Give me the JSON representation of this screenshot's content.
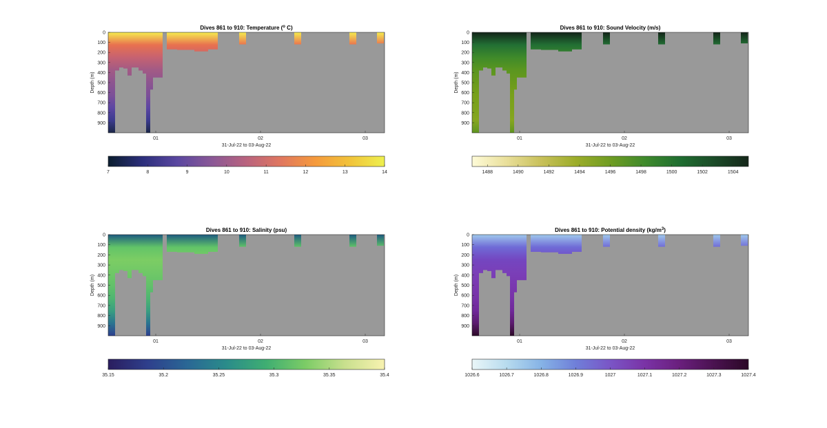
{
  "figure": {
    "background": "#ffffff",
    "no_data_color": "#999999"
  },
  "chart_data": [
    {
      "type": "heatmap",
      "title": "Dives 861 to 910: Temperature (",
      "title_super": "o",
      "title_suffix": " C)",
      "xlabel": "31-Jul-22 to 03-Aug-22",
      "ylabel": "Depth (m)",
      "x_ticks": [
        "01",
        "02",
        "03"
      ],
      "y_ticks": [
        "0",
        "100",
        "200",
        "300",
        "400",
        "500",
        "600",
        "700",
        "800",
        "900"
      ],
      "ylim": [
        0,
        1000
      ],
      "colorbar": {
        "ticks": [
          "7",
          "8",
          "9",
          "10",
          "11",
          "12",
          "13",
          "14"
        ],
        "range": [
          7,
          14
        ],
        "colors": [
          "#0b1d2e",
          "#2c2f7c",
          "#5a47a0",
          "#8a5896",
          "#b9637e",
          "#e0775f",
          "#f59a3c",
          "#f1c33a",
          "#eef04f"
        ]
      },
      "profile_colors": [
        "#f6ec4f",
        "#e8714f",
        "#c66271",
        "#a25a85",
        "#8d5590",
        "#7c4f98",
        "#5d46a3",
        "#3c3b8f",
        "#1b2747"
      ]
    },
    {
      "type": "heatmap",
      "title": "Dives 861 to 910: Sound Velocity (m/s)",
      "title_super": "",
      "title_suffix": "",
      "xlabel": "31-Jul-22 to 03-Aug-22",
      "ylabel": "Depth (m)",
      "x_ticks": [
        "01",
        "02",
        "03"
      ],
      "y_ticks": [
        "0",
        "100",
        "200",
        "300",
        "400",
        "500",
        "600",
        "700",
        "800",
        "900"
      ],
      "ylim": [
        0,
        1000
      ],
      "colorbar": {
        "ticks": [
          "1488",
          "1490",
          "1492",
          "1494",
          "1496",
          "1498",
          "1500",
          "1502",
          "1504"
        ],
        "range": [
          1487,
          1505
        ],
        "colors": [
          "#fefbd8",
          "#e9df9a",
          "#c8c05a",
          "#9cad2a",
          "#6f9c22",
          "#3f8a2c",
          "#1f6e30",
          "#1b4b28",
          "#15271a"
        ]
      },
      "profile_colors": [
        "#132519",
        "#226f34",
        "#3f8a2a",
        "#5b9620",
        "#6a9a1c",
        "#78a01b",
        "#7da21d",
        "#86a620",
        "#5f9520"
      ]
    },
    {
      "type": "heatmap",
      "title": "Dives 861 to 910: Salinity (psu)",
      "title_super": "",
      "title_suffix": "",
      "xlabel": "31-Jul-22 to 03-Aug-22",
      "ylabel": "Depth (m)",
      "x_ticks": [
        "01",
        "02",
        "03"
      ],
      "y_ticks": [
        "0",
        "100",
        "200",
        "300",
        "400",
        "500",
        "600",
        "700",
        "800",
        "900"
      ],
      "ylim": [
        0,
        1000
      ],
      "colorbar": {
        "ticks": [
          "35.15",
          "35.2",
          "35.25",
          "35.3",
          "35.35",
          "35.4"
        ],
        "range": [
          35.15,
          35.4
        ],
        "colors": [
          "#2a1d5e",
          "#2e3f8c",
          "#2a6795",
          "#2a8c8a",
          "#3fae72",
          "#7ccc66",
          "#c9e08e",
          "#f8f2b0"
        ]
      },
      "profile_colors": [
        "#1d5b80",
        "#62c468",
        "#7ccd64",
        "#70c867",
        "#63c16a",
        "#4fb671",
        "#3a9f80",
        "#2a7490",
        "#2d3f8e"
      ]
    },
    {
      "type": "heatmap",
      "title": "Dives 861 to 910: Potential density (kg/m",
      "title_super": "3",
      "title_suffix": ")",
      "xlabel": "31-Jul-22 to 03-Aug-22",
      "ylabel": "Depth (m)",
      "x_ticks": [
        "01",
        "02",
        "03"
      ],
      "y_ticks": [
        "0",
        "100",
        "200",
        "300",
        "400",
        "500",
        "600",
        "700",
        "800",
        "900"
      ],
      "ylim": [
        0,
        1000
      ],
      "colorbar": {
        "ticks": [
          "1026.6",
          "1026.7",
          "1026.8",
          "1026.9",
          "1027",
          "1027.1",
          "1027.2",
          "1027.3",
          "1027.4"
        ],
        "range": [
          1026.6,
          1027.4
        ],
        "colors": [
          "#eaf6f8",
          "#b7dbee",
          "#86b3e6",
          "#6f7fd9",
          "#7a55c6",
          "#7a33a6",
          "#6a1f7d",
          "#4a1250",
          "#2b0826"
        ]
      },
      "profile_colors": [
        "#9fc8ec",
        "#6f6ad6",
        "#7446c0",
        "#7a3fb8",
        "#7a38b0",
        "#7733a8",
        "#70299a",
        "#5b1b6e",
        "#2d0a28"
      ]
    }
  ]
}
